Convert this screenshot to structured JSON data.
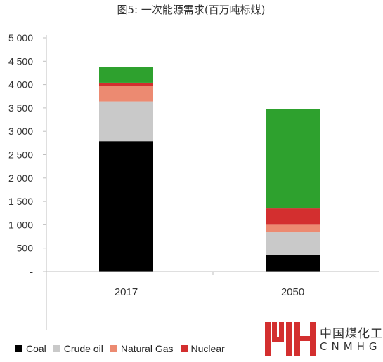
{
  "chart_data": {
    "type": "bar",
    "stacked": true,
    "title": "图5: 一次能源需求(百万吨标煤)",
    "categories": [
      "2017",
      "2050"
    ],
    "series": [
      {
        "name": "Coal",
        "color": "#000000",
        "values": [
          2790,
          360
        ]
      },
      {
        "name": "Crude oil",
        "color": "#c9c9c9",
        "values": [
          850,
          480
        ]
      },
      {
        "name": "Natural Gas",
        "color": "#ec8a71",
        "values": [
          330,
          160
        ]
      },
      {
        "name": "Nuclear",
        "color": "#d32f2f",
        "values": [
          70,
          350
        ]
      },
      {
        "name": "",
        "color": "#2ea12e",
        "values": [
          330,
          2130
        ]
      }
    ],
    "yticks": [
      "-",
      "500",
      "1 000",
      "1 500",
      "2 000",
      "2 500",
      "3 000",
      "3 500",
      "4 000",
      "4 500",
      "5 000"
    ],
    "ylim": [
      0,
      5000
    ],
    "grid": false,
    "legend_position": "bottom-left"
  },
  "watermark": {
    "cn": "中国煤化工",
    "en": "CNMHG"
  }
}
